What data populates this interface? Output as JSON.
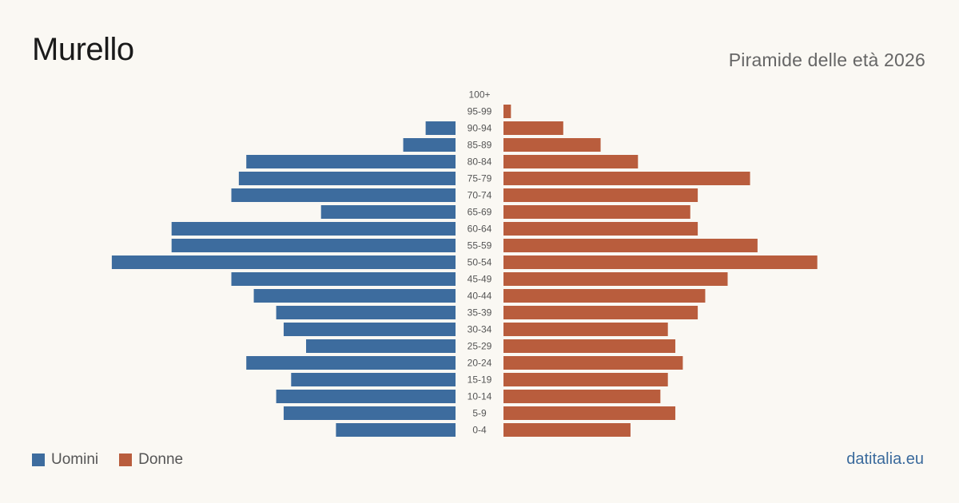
{
  "title": "Murello",
  "subtitle": "Piramide delle età 2026",
  "brand": "datitalia.eu",
  "colors": {
    "men": "#3d6c9e",
    "women": "#b95d3d"
  },
  "legend": {
    "men_label": "Uomini",
    "women_label": "Donne"
  },
  "chart_data": {
    "type": "bar",
    "orientation": "horizontal-pyramid",
    "categories": [
      "100+",
      "95-99",
      "90-94",
      "85-89",
      "80-84",
      "75-79",
      "70-74",
      "65-69",
      "60-64",
      "55-59",
      "50-54",
      "45-49",
      "40-44",
      "35-39",
      "30-34",
      "25-29",
      "20-24",
      "15-19",
      "10-14",
      "5-9",
      "0-4"
    ],
    "series": [
      {
        "name": "Uomini",
        "side": "left",
        "values": [
          0,
          0,
          4,
          7,
          28,
          29,
          30,
          18,
          38,
          38,
          46,
          30,
          27,
          24,
          23,
          20,
          28,
          22,
          24,
          23,
          16
        ]
      },
      {
        "name": "Donne",
        "side": "right",
        "values": [
          0,
          1,
          8,
          13,
          18,
          33,
          26,
          25,
          26,
          34,
          42,
          30,
          27,
          26,
          22,
          23,
          24,
          22,
          21,
          23,
          17
        ]
      }
    ],
    "grid": false,
    "legend_position": "bottom-left"
  }
}
